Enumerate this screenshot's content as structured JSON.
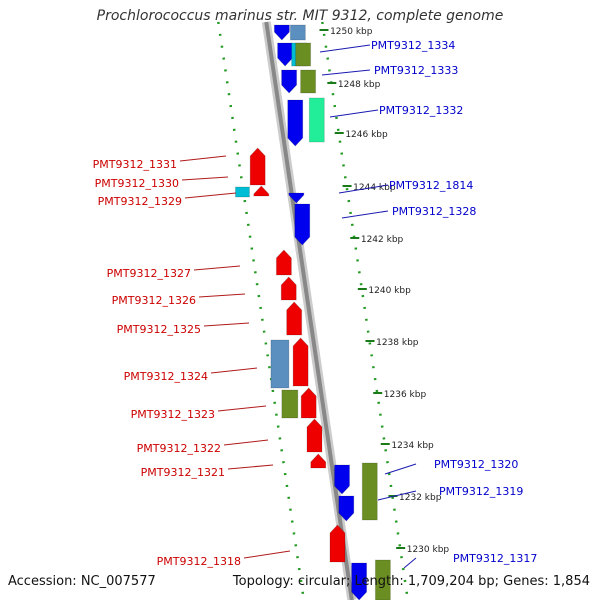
{
  "title": "Prochlorococcus marinus str. MIT 9312, complete genome",
  "footer": {
    "accession": "Accession: NC_007577",
    "topology": "Topology: circular; Length: 1,709,204 bp; Genes: 1,854"
  },
  "colors": {
    "backbone": "#888888",
    "scale_dots": "#229922",
    "forward_gene": "#0000ee",
    "reverse_gene": "#ee0000",
    "label_forward": "#0000cc",
    "label_reverse": "#cc0000",
    "cog_steelblue": "#5a8fc0",
    "cog_olive": "#6b8e23",
    "cog_cyan": "#00bcd4",
    "cog_aquamarine": "#22ee99"
  },
  "scale_ticks": [
    "1250 kbp",
    "1248 kbp",
    "1246 kbp",
    "1244 kbp",
    "1242 kbp",
    "1240 kbp",
    "1238 kbp",
    "1236 kbp",
    "1234 kbp",
    "1232 kbp",
    "1230 kbp"
  ],
  "genes_right": [
    {
      "label": "PMT9312_1334",
      "strand": "+"
    },
    {
      "label": "PMT9312_1333",
      "strand": "+"
    },
    {
      "label": "PMT9312_1332",
      "strand": "+"
    },
    {
      "label": "PMT9312_1814",
      "strand": "+"
    },
    {
      "label": "PMT9312_1328",
      "strand": "+"
    },
    {
      "label": "PMT9312_1320",
      "strand": "+"
    },
    {
      "label": "PMT9312_1319",
      "strand": "+"
    },
    {
      "label": "PMT9312_1317",
      "strand": "+"
    }
  ],
  "genes_left": [
    {
      "label": "PMT9312_1331",
      "strand": "-"
    },
    {
      "label": "PMT9312_1330",
      "strand": "-"
    },
    {
      "label": "PMT9312_1329",
      "strand": "-"
    },
    {
      "label": "PMT9312_1327",
      "strand": "-"
    },
    {
      "label": "PMT9312_1326",
      "strand": "-"
    },
    {
      "label": "PMT9312_1325",
      "strand": "-"
    },
    {
      "label": "PMT9312_1324",
      "strand": "-"
    },
    {
      "label": "PMT9312_1323",
      "strand": "-"
    },
    {
      "label": "PMT9312_1322",
      "strand": "-"
    },
    {
      "label": "PMT9312_1321",
      "strand": "-"
    },
    {
      "label": "PMT9312_1318",
      "strand": "-"
    }
  ]
}
